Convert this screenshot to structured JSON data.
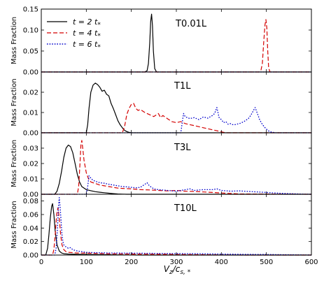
{
  "chart_data": {
    "type": "line",
    "xlabel": "V_z/c_s,*",
    "xlim": [
      0,
      600
    ],
    "xticks": [
      "0",
      "100",
      "200",
      "300",
      "400",
      "500",
      "600"
    ],
    "ylabel": "Mass Fraction",
    "legend": {
      "placement": "top-left",
      "entries": [
        {
          "label": "t = 2 t*",
          "color": "#000000",
          "dash": "solid"
        },
        {
          "label": "t = 4 t*",
          "color": "#d40000",
          "dash": "dashed"
        },
        {
          "label": "t = 6 t*",
          "color": "#0000cc",
          "dash": "dotted"
        }
      ]
    },
    "panels": [
      {
        "title": "T0.01L",
        "ylim": [
          0,
          0.15
        ],
        "yticks": [
          "0.00",
          "0.05",
          "0.10",
          "0.15"
        ],
        "series": [
          {
            "name": "t = 2 t*",
            "x": [
              0,
              230,
              235,
              238,
              241,
              243,
              245,
              247,
              249,
              252,
              256,
              600
            ],
            "y": [
              0,
              0,
              0.003,
              0.02,
              0.07,
              0.12,
              0.138,
              0.11,
              0.05,
              0.008,
              0,
              0
            ]
          },
          {
            "name": "t = 4 t*",
            "x": [
              0,
              484,
              488,
              491,
              494,
              497,
              499,
              501,
              503,
              505,
              508,
              600
            ],
            "y": [
              0,
              0,
              0.004,
              0.02,
              0.07,
              0.113,
              0.125,
              0.105,
              0.05,
              0.01,
              0,
              0
            ]
          },
          {
            "name": "t = 6 t*",
            "x": [
              0,
              600
            ],
            "y": [
              0,
              0
            ]
          }
        ]
      },
      {
        "title": "T1L",
        "ylim": [
          0,
          0.03
        ],
        "yticks": [
          "0.00",
          "0.01",
          "0.02"
        ],
        "series": [
          {
            "name": "t = 2 t*",
            "x": [
              0,
              100,
              103,
              106,
              110,
              115,
              120,
              125,
              130,
              135,
              140,
              145,
              150,
              155,
              160,
              165,
              170,
              175,
              180,
              185,
              190,
              195,
              200,
              600
            ],
            "y": [
              0,
              0,
              0.004,
              0.012,
              0.02,
              0.0235,
              0.0245,
              0.0238,
              0.0225,
              0.0205,
              0.021,
              0.019,
              0.0182,
              0.0145,
              0.012,
              0.009,
              0.006,
              0.004,
              0.0025,
              0.0012,
              0.0006,
              0.0002,
              0,
              0
            ]
          },
          {
            "name": "t = 4 t*",
            "x": [
              0,
              180,
              185,
              190,
              195,
              200,
              205,
              210,
              215,
              220,
              230,
              240,
              250,
              260,
              265,
              270,
              280,
              290,
              300,
              310,
              320,
              330,
              340,
              350,
              360,
              370,
              380,
              390,
              400,
              405,
              410,
              600
            ],
            "y": [
              0,
              0,
              0.003,
              0.009,
              0.012,
              0.014,
              0.0145,
              0.012,
              0.011,
              0.0115,
              0.01,
              0.009,
              0.008,
              0.0095,
              0.0075,
              0.0085,
              0.007,
              0.0055,
              0.005,
              0.0055,
              0.0045,
              0.004,
              0.0035,
              0.003,
              0.0025,
              0.002,
              0.0015,
              0.001,
              0.0005,
              0.0002,
              0,
              0
            ]
          },
          {
            "name": "t = 6 t*",
            "x": [
              0,
              310,
              313,
              316,
              320,
              325,
              330,
              340,
              350,
              360,
              370,
              380,
              385,
              390,
              395,
              400,
              405,
              410,
              415,
              420,
              425,
              430,
              440,
              450,
              460,
              465,
              470,
              475,
              480,
              485,
              490,
              495,
              500,
              505,
              510,
              520,
              600
            ],
            "y": [
              0,
              0,
              0.005,
              0.0095,
              0.0078,
              0.0075,
              0.007,
              0.0075,
              0.0065,
              0.0078,
              0.0072,
              0.0085,
              0.0095,
              0.0125,
              0.0075,
              0.0065,
              0.005,
              0.0055,
              0.0042,
              0.0045,
              0.004,
              0.004,
              0.0045,
              0.0055,
              0.007,
              0.0085,
              0.0105,
              0.0125,
              0.0095,
              0.0065,
              0.0045,
              0.003,
              0.0018,
              0.0009,
              0.0004,
              0,
              0
            ]
          }
        ]
      },
      {
        "title": "T3L",
        "ylim": [
          0,
          0.04
        ],
        "yticks": [
          "0.00",
          "0.01",
          "0.02",
          "0.03"
        ],
        "series": [
          {
            "name": "t = 2 t*",
            "x": [
              0,
              30,
              35,
              40,
              45,
              50,
              55,
              60,
              65,
              70,
              75,
              80,
              85,
              90,
              100,
              110,
              120,
              130,
              140,
              150,
              160,
              170,
              180,
              190,
              600
            ],
            "y": [
              0,
              0,
              0.002,
              0.007,
              0.015,
              0.024,
              0.03,
              0.032,
              0.031,
              0.027,
              0.02,
              0.013,
              0.008,
              0.005,
              0.003,
              0.0023,
              0.0017,
              0.0013,
              0.001,
              0.0007,
              0.0004,
              0.0002,
              0.0001,
              0,
              0
            ]
          },
          {
            "name": "t = 4 t*",
            "x": [
              0,
              80,
              83,
              86,
              88,
              90,
              92,
              95,
              100,
              105,
              110,
              115,
              120,
              130,
              140,
              150,
              160,
              170,
              180,
              200,
              220,
              240,
              260,
              280,
              300,
              320,
              340,
              360,
              380,
              400,
              420,
              440,
              600
            ],
            "y": [
              0,
              0,
              0.005,
              0.02,
              0.032,
              0.035,
              0.03,
              0.022,
              0.014,
              0.01,
              0.008,
              0.0075,
              0.007,
              0.006,
              0.0055,
              0.005,
              0.0045,
              0.004,
              0.0038,
              0.0035,
              0.003,
              0.0028,
              0.0025,
              0.0022,
              0.0025,
              0.002,
              0.0018,
              0.0015,
              0.0012,
              0.0008,
              0.0005,
              0.0002,
              0
            ]
          },
          {
            "name": "t = 6 t*",
            "x": [
              0,
              100,
              103,
              106,
              110,
              115,
              120,
              125,
              130,
              140,
              150,
              160,
              170,
              180,
              190,
              200,
              210,
              220,
              230,
              235,
              240,
              250,
              260,
              280,
              300,
              320,
              330,
              340,
              360,
              380,
              390,
              400,
              420,
              440,
              460,
              480,
              500,
              520,
              540,
              560,
              580,
              600
            ],
            "y": [
              0,
              0,
              0.005,
              0.012,
              0.0105,
              0.009,
              0.0085,
              0.008,
              0.0075,
              0.0072,
              0.0065,
              0.006,
              0.0055,
              0.005,
              0.0048,
              0.0045,
              0.0042,
              0.0045,
              0.0065,
              0.0075,
              0.0055,
              0.0035,
              0.003,
              0.0025,
              0.002,
              0.003,
              0.0035,
              0.0025,
              0.003,
              0.003,
              0.0035,
              0.0025,
              0.002,
              0.0022,
              0.0018,
              0.0015,
              0.0012,
              0.0008,
              0.0005,
              0.0003,
              0.0001,
              0
            ]
          }
        ]
      },
      {
        "title": "T10L",
        "ylim": [
          0,
          0.09
        ],
        "yticks": [
          "0.00",
          "0.02",
          "0.04",
          "0.06",
          "0.08"
        ],
        "series": [
          {
            "name": "t = 2 t*",
            "x": [
              0,
              10,
              14,
              17,
              20,
              23,
              25,
              28,
              31,
              35,
              40,
              45,
              50,
              60,
              80,
              100,
              140,
              180,
              220,
              600
            ],
            "y": [
              0,
              0,
              0.01,
              0.03,
              0.055,
              0.072,
              0.076,
              0.06,
              0.035,
              0.015,
              0.006,
              0.003,
              0.002,
              0.0015,
              0.001,
              0.0008,
              0.0005,
              0.0002,
              0,
              0
            ]
          },
          {
            "name": "t = 4 t*",
            "x": [
              0,
              25,
              28,
              31,
              34,
              37,
              40,
              43,
              46,
              50,
              55,
              60,
              70,
              80,
              100,
              120,
              150,
              200,
              250,
              300,
              350,
              400,
              450,
              600
            ],
            "y": [
              0,
              0,
              0.008,
              0.03,
              0.06,
              0.07,
              0.055,
              0.03,
              0.015,
              0.008,
              0.005,
              0.004,
              0.0035,
              0.003,
              0.0028,
              0.0025,
              0.002,
              0.0015,
              0.0012,
              0.0008,
              0.0005,
              0.0002,
              0,
              0
            ]
          },
          {
            "name": "t = 6 t*",
            "x": [
              0,
              30,
              33,
              36,
              38,
              40,
              42,
              44,
              46,
              48,
              50,
              55,
              60,
              65,
              70,
              80,
              90,
              100,
              120,
              150,
              200,
              250,
              300,
              350,
              400,
              450,
              500,
              550,
              600
            ],
            "y": [
              0,
              0,
              0.01,
              0.04,
              0.07,
              0.085,
              0.07,
              0.05,
              0.03,
              0.02,
              0.015,
              0.012,
              0.01,
              0.011,
              0.008,
              0.006,
              0.005,
              0.004,
              0.0035,
              0.003,
              0.0028,
              0.0025,
              0.0022,
              0.002,
              0.0015,
              0.001,
              0.0008,
              0.0004,
              0
            ]
          }
        ]
      }
    ]
  }
}
